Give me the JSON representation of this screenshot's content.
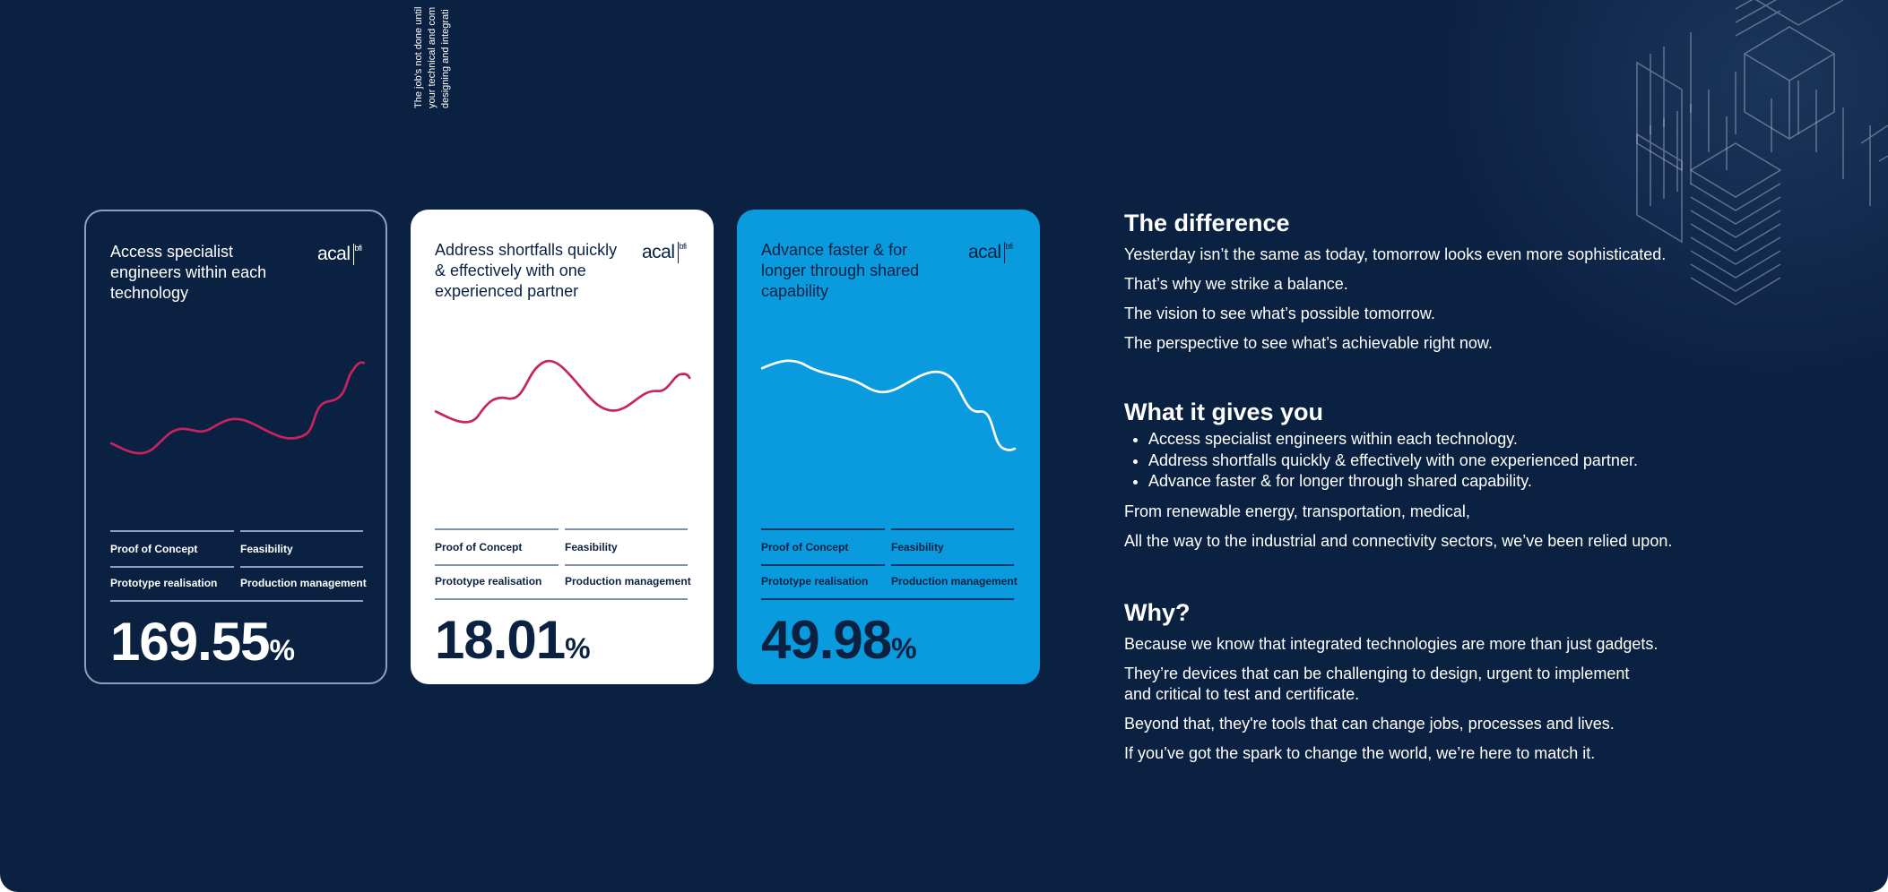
{
  "side_text": [
    "The job's not done until",
    "your technical and com",
    "designing and integrati"
  ],
  "cards": [
    {
      "title": "Access specialist engineers within each technology",
      "logo": "acal",
      "logo_sub": "bfi",
      "stages": [
        "Proof of Concept",
        "Feasibility",
        "Prototype realisation",
        "Production management"
      ],
      "value": "169.55",
      "unit": "%"
    },
    {
      "title": "Address shortfalls quickly & effectively with one experienced partner",
      "logo": "acal",
      "logo_sub": "bfi",
      "stages": [
        "Proof of Concept",
        "Feasibility",
        "Prototype realisation",
        "Production management"
      ],
      "value": "18.01",
      "unit": "%"
    },
    {
      "title": "Advance faster & for longer through shared capability",
      "logo": "acal",
      "logo_sub": "bfi",
      "stages": [
        "Proof of Concept",
        "Feasibility",
        "Prototype realisation",
        "Production management"
      ],
      "value": "49.98",
      "unit": "%"
    }
  ],
  "sections": [
    {
      "heading": "The difference",
      "paragraphs": [
        "Yesterday isn’t the same as today, tomorrow looks even more sophisticated.",
        "That’s why we strike a balance.",
        "The vision to see what’s possible tomorrow.",
        "The perspective to see what’s achievable right now."
      ]
    },
    {
      "heading": "What it gives you",
      "bullets": [
        "Access specialist engineers within each technology.",
        "Address shortfalls quickly & effectively with one experienced partner.",
        "Advance faster & for longer through shared capability."
      ],
      "paragraphs": [
        "From renewable energy, transportation, medical,",
        "All the way to the industrial and connectivity sectors, we’ve been relied upon."
      ]
    },
    {
      "heading": "Why?",
      "paragraphs": [
        "Because we know that integrated technologies are more than just gadgets.",
        "They’re devices that can be challenging to design, urgent to implement and critical to test and certificate.",
        "Beyond that, they're tools that can change jobs, processes and lives.",
        "If you’ve got the spark to change the world, we’re here to match it."
      ]
    }
  ]
}
